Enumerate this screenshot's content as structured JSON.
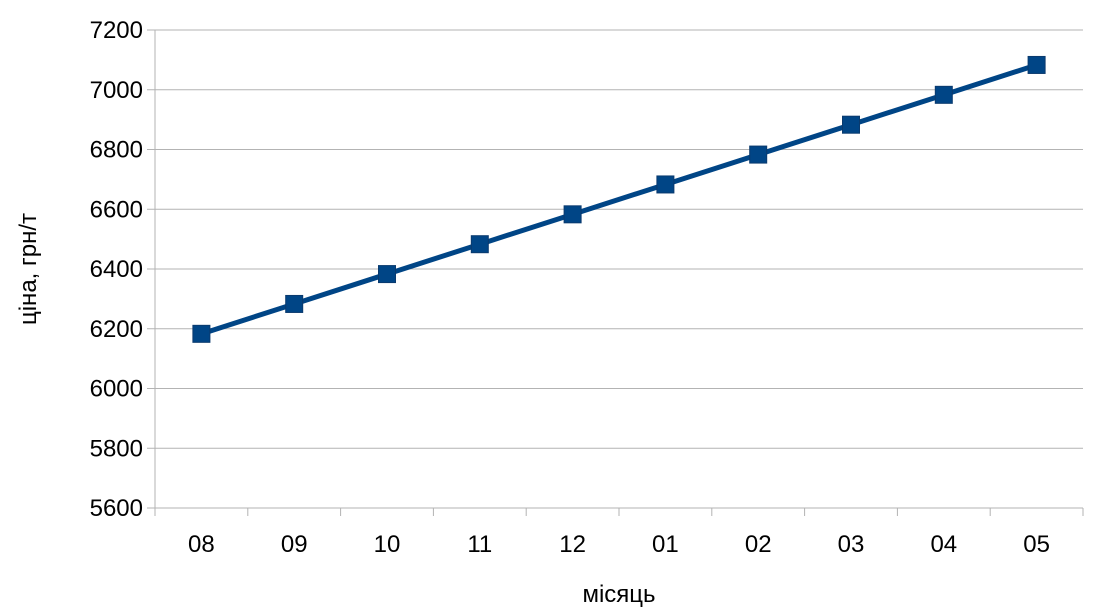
{
  "chart_data": {
    "type": "line",
    "title": "",
    "xlabel": "місяць",
    "ylabel": "ціна, грн/т",
    "categories": [
      "08",
      "09",
      "10",
      "11",
      "12",
      "01",
      "02",
      "03",
      "04",
      "05"
    ],
    "series": [
      {
        "values": [
          6183,
          6283,
          6383,
          6483,
          6583,
          6683,
          6783,
          6883,
          6983,
          7083
        ]
      }
    ],
    "ylim": [
      5600,
      7200
    ],
    "yticks": [
      "5600",
      "5800",
      "6000",
      "6200",
      "6400",
      "6600",
      "6800",
      "7000",
      "7200"
    ],
    "grid": true,
    "legend": "none",
    "colors": {
      "series": "#004586",
      "grid": "#b3b3b3",
      "axis": "#b3b3b3"
    }
  }
}
